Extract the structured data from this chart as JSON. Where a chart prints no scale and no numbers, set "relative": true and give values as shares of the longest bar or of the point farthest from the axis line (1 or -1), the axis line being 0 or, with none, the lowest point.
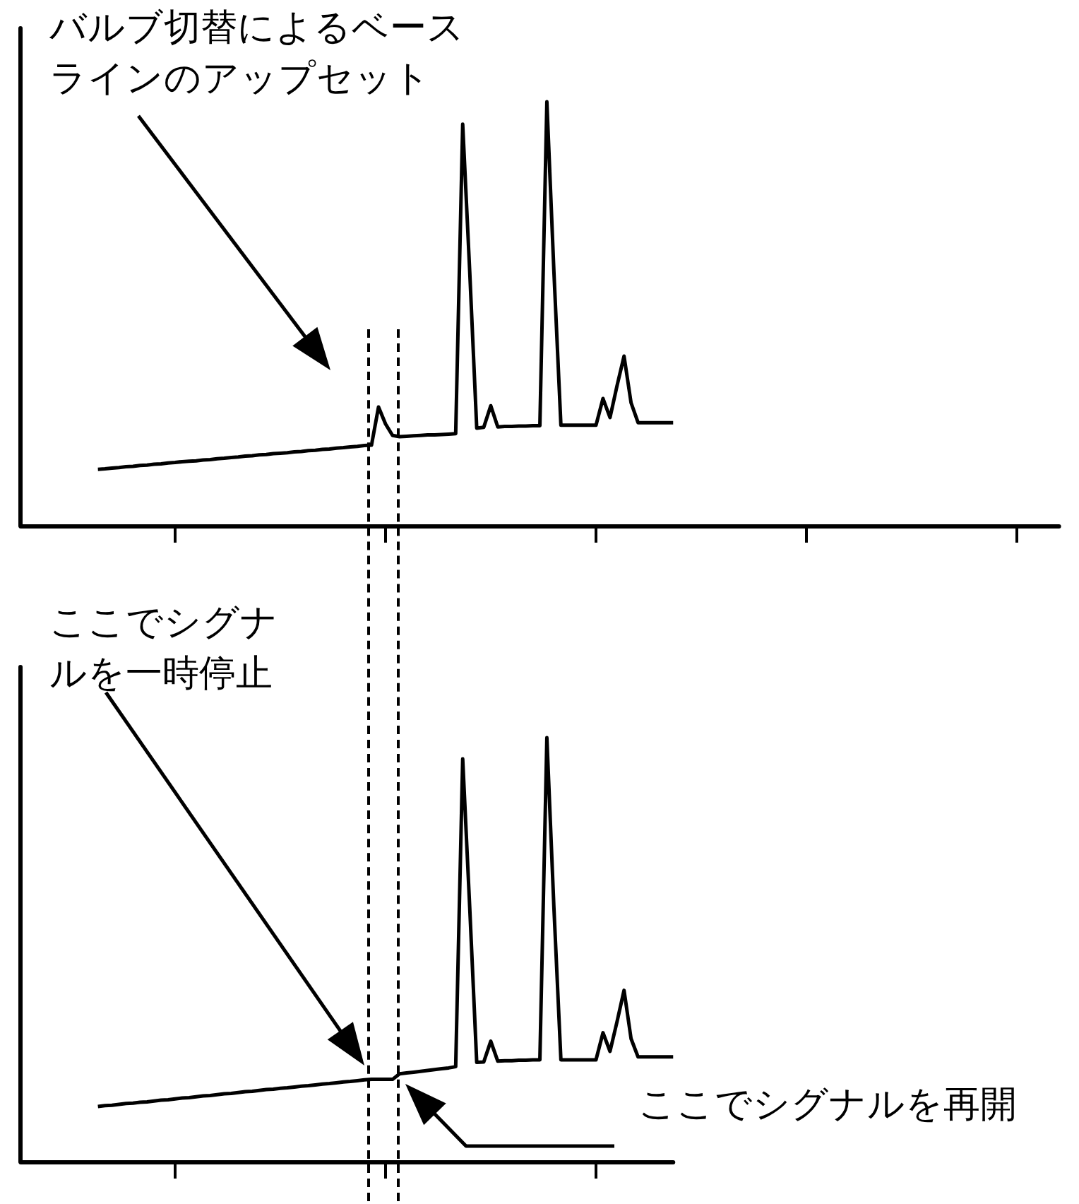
{
  "chart_data": [
    {
      "type": "line",
      "relative": true,
      "grid": false,
      "marker": "none",
      "line_style": "solid",
      "annotations": [
        "バルブ切替によるベースラインのアップセット"
      ],
      "categories": [
        null,
        null,
        null,
        null,
        null,
        null,
        null,
        null,
        null,
        null,
        null,
        null,
        null,
        null,
        null,
        null,
        null,
        null,
        null,
        null,
        null,
        null,
        null,
        null,
        null,
        null,
        null,
        null,
        null,
        null,
        null,
        null,
        null,
        null,
        null,
        null,
        null,
        null,
        null,
        null,
        null,
        null,
        null,
        null,
        null,
        null,
        null,
        null,
        null,
        null,
        null,
        null,
        null,
        null,
        null,
        null,
        null,
        null,
        null,
        null,
        null,
        null,
        null,
        null,
        null,
        null,
        null,
        null,
        null,
        null,
        null,
        null,
        null,
        null,
        null,
        null,
        null,
        null,
        null,
        null,
        null,
        null,
        null,
        null,
        null,
        null,
        null,
        null,
        null,
        null,
        null,
        null,
        null,
        null,
        null,
        null,
        null,
        null,
        null,
        null,
        null,
        null,
        null,
        null,
        null,
        null,
        null,
        null,
        null,
        null,
        null,
        null,
        null,
        null,
        null,
        null,
        null,
        null,
        null,
        null,
        null,
        null,
        null,
        null,
        null,
        null,
        null,
        null,
        null,
        null,
        null,
        null,
        null,
        null,
        null,
        null,
        null,
        null,
        null,
        null,
        null,
        null,
        null,
        null,
        null,
        null,
        null,
        null,
        null
      ],
      "series": [
        {
          "color": "#000000",
          "values": [
            null,
            null,
            null,
            null,
            null,
            null,
            null,
            null,
            null,
            null,
            null,
            0.133,
            0.134,
            0.136,
            0.137,
            0.139,
            0.14,
            0.142,
            0.143,
            0.145,
            0.146,
            0.148,
            0.149,
            0.151,
            0.152,
            0.153,
            0.155,
            0.156,
            0.158,
            0.159,
            0.161,
            0.162,
            0.164,
            0.165,
            0.167,
            0.168,
            0.17,
            0.171,
            0.172,
            0.174,
            0.175,
            0.177,
            0.178,
            0.18,
            0.181,
            0.183,
            0.184,
            0.186,
            0.187,
            0.189,
            0.19,
            0.28,
            0.24,
            0.213,
            0.21,
            0.211,
            0.212,
            0.213,
            0.214,
            0.214,
            0.215,
            0.216,
            0.217,
            0.947,
            0.6,
            0.23,
            0.232,
            0.283,
            0.233,
            0.234,
            0.234,
            0.235,
            0.235,
            0.236,
            0.236,
            1,
            0.6,
            0.237,
            0.237,
            0.237,
            0.237,
            0.237,
            0.237,
            0.3,
            0.255,
            0.33,
            0.4,
            0.29,
            0.243,
            0.243,
            0.243,
            0.243,
            0.243,
            0.243,
            null,
            null,
            null,
            null,
            null,
            null,
            null,
            null,
            null,
            null,
            null,
            null,
            null,
            null,
            null,
            null,
            null,
            null,
            null,
            null,
            null,
            null,
            null,
            null,
            null,
            null,
            null,
            null,
            null,
            null,
            null,
            null,
            null,
            null,
            null,
            null,
            null,
            null,
            null,
            null,
            null,
            null,
            null,
            null,
            null,
            null,
            null,
            null,
            null,
            null,
            null,
            null,
            null,
            null,
            null
          ]
        }
      ]
    },
    {
      "type": "line",
      "relative": true,
      "grid": false,
      "marker": "none",
      "line_style": "solid",
      "annotations": [
        "ここでシグナルを一時停止",
        "ここでシグナルを再開"
      ],
      "categories": [
        null,
        null,
        null,
        null,
        null,
        null,
        null,
        null,
        null,
        null,
        null,
        null,
        null,
        null,
        null,
        null,
        null,
        null,
        null,
        null,
        null,
        null,
        null,
        null,
        null,
        null,
        null,
        null,
        null,
        null,
        null,
        null,
        null,
        null,
        null,
        null,
        null,
        null,
        null,
        null,
        null,
        null,
        null,
        null,
        null,
        null,
        null,
        null,
        null,
        null,
        null,
        null,
        null,
        null,
        null,
        null,
        null,
        null,
        null,
        null,
        null,
        null,
        null,
        null,
        null,
        null,
        null,
        null,
        null,
        null,
        null,
        null,
        null,
        null,
        null,
        null,
        null,
        null,
        null,
        null,
        null,
        null,
        null,
        null,
        null,
        null,
        null,
        null,
        null,
        null,
        null,
        null,
        null,
        null
      ],
      "series": [
        {
          "color": "#000000",
          "values": [
            null,
            null,
            null,
            null,
            null,
            null,
            null,
            null,
            null,
            null,
            null,
            0.13,
            0.132,
            0.133,
            0.135,
            0.137,
            0.138,
            0.14,
            0.141,
            0.143,
            0.145,
            0.146,
            0.148,
            0.15,
            0.151,
            0.153,
            0.155,
            0.156,
            0.158,
            0.16,
            0.161,
            0.163,
            0.165,
            0.166,
            0.168,
            0.17,
            0.171,
            0.173,
            0.174,
            0.176,
            0.178,
            0.179,
            0.181,
            0.183,
            0.184,
            0.186,
            0.188,
            0.189,
            0.191,
            0.193,
            0.194,
            0.194,
            0.194,
            0.194,
            0.207,
            0.209,
            0.211,
            0.213,
            0.215,
            0.217,
            0.219,
            0.221,
            0.224,
            0.95,
            0.6,
            0.234,
            0.235,
            0.284,
            0.237,
            0.238,
            0.238,
            0.239,
            0.239,
            0.24,
            0.24,
            1,
            0.6,
            0.24,
            0.24,
            0.24,
            0.24,
            0.24,
            0.24,
            0.304,
            0.26,
            0.33,
            0.404,
            0.29,
            0.247,
            0.247,
            0.247,
            0.247,
            0.247,
            0.247
          ]
        }
      ]
    }
  ]
}
